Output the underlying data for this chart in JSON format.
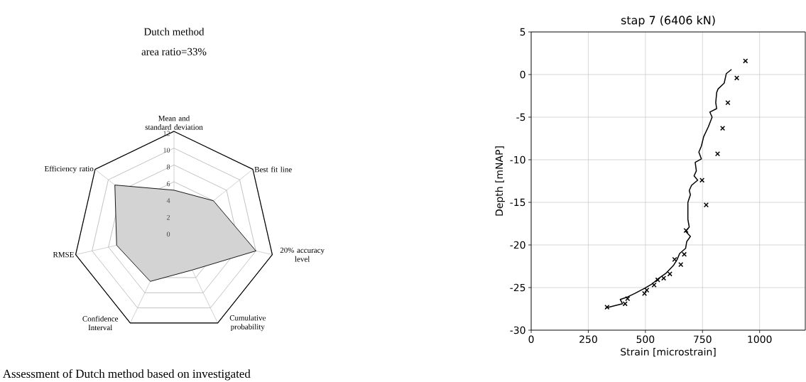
{
  "chart_data": [
    {
      "type": "radar",
      "title": "Dutch method",
      "subtitle": "area ratio=33%",
      "categories": [
        "Mean and standard deviation",
        "Best fit line",
        "20% accuracy level",
        "Cumulative probability",
        "Confidence Interval",
        "RMSE",
        "Efficiency ratio"
      ],
      "series": [
        {
          "color": "#d3d3d3",
          "values": [
            5,
            6,
            10,
            5,
            6.5,
            7,
            9
          ]
        }
      ],
      "ylim": [
        0,
        12
      ],
      "yticks": [
        0,
        2,
        4,
        6,
        8,
        10,
        12
      ],
      "annotations": [
        "Assessment of Dutch method based on investigated"
      ]
    },
    {
      "type": "line",
      "title": "stap 7 (6406 kN)",
      "xlabel": "Strain [microstrain]",
      "ylabel": "Depth [mNAP]",
      "xlim": [
        0,
        1200
      ],
      "ylim": [
        -30,
        5
      ],
      "xticks": [
        0,
        250,
        500,
        750,
        1000
      ],
      "yticks": [
        -30,
        -25,
        -20,
        -15,
        -10,
        -5,
        0,
        5
      ],
      "grid": true,
      "series": [
        {
          "type": "line",
          "color": "#000000",
          "marker": "none",
          "x": [
            877,
            854,
            845,
            818,
            812,
            808,
            812,
            782,
            792,
            776,
            755,
            745,
            734,
            745,
            718,
            723,
            713,
            729,
            702,
            692,
            697,
            686,
            686,
            692,
            676,
            697,
            681,
            676,
            650,
            639,
            623,
            591,
            559,
            528,
            496,
            453,
            422,
            390,
            400,
            326
          ],
          "values": [
            0.6,
            0.1,
            -1.0,
            -1.7,
            -2.1,
            -3.3,
            -4.0,
            -4.4,
            -5.0,
            -6.1,
            -7.3,
            -8.4,
            -9.1,
            -9.9,
            -10.3,
            -11.3,
            -11.9,
            -12.4,
            -13.0,
            -13.6,
            -14.1,
            -15.0,
            -17.0,
            -17.9,
            -18.4,
            -19.0,
            -19.6,
            -20.4,
            -21.0,
            -21.7,
            -22.4,
            -23.3,
            -23.9,
            -24.6,
            -25.1,
            -25.7,
            -26.1,
            -26.4,
            -26.9,
            -27.4
          ]
        },
        {
          "type": "scatter",
          "color": "#000000",
          "marker": "cross",
          "x": [
            938,
            900,
            861,
            838,
            816,
            748,
            766,
            678,
            670,
            655,
            628,
            607,
            580,
            554,
            538,
            506,
            496,
            422,
            411,
            332
          ],
          "values": [
            1.6,
            -0.4,
            -3.3,
            -6.3,
            -9.3,
            -12.4,
            -15.3,
            -18.3,
            -21.1,
            -22.3,
            -21.7,
            -23.4,
            -23.9,
            -24.1,
            -24.7,
            -25.3,
            -25.7,
            -26.3,
            -26.9,
            -27.3
          ]
        }
      ]
    }
  ]
}
